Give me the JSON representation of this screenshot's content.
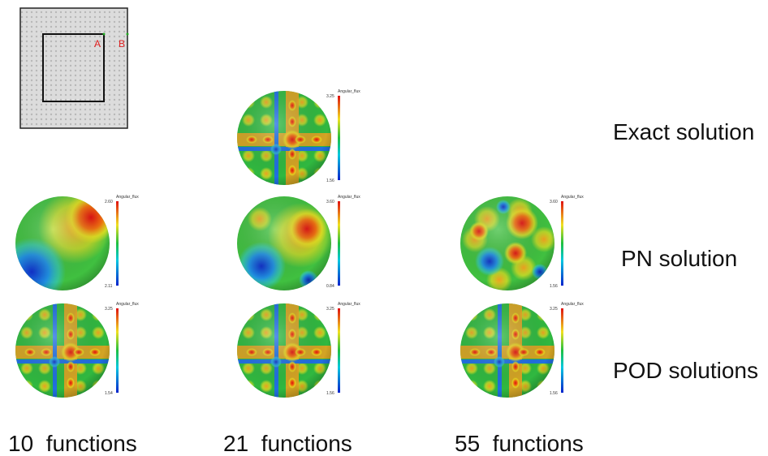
{
  "inset": {
    "point_a": "A",
    "point_b": "B"
  },
  "rows": [
    {
      "label": "Exact solution",
      "cells": [
        null,
        {
          "colorbar_title": "Angular_flux",
          "max": "3.25",
          "min": "1.56"
        },
        null
      ]
    },
    {
      "label": "PN solution",
      "cells": [
        {
          "colorbar_title": "Angular_flux",
          "max": "2.60",
          "min": "2.11"
        },
        {
          "colorbar_title": "Angular_flux",
          "max": "3.60",
          "min": "0.84"
        },
        {
          "colorbar_title": "Angular_flux",
          "max": "3.60",
          "min": "1.56"
        }
      ]
    },
    {
      "label": "POD solutions",
      "cells": [
        {
          "colorbar_title": "Angular_flux",
          "max": "3.25",
          "min": "1.54"
        },
        {
          "colorbar_title": "Angular_flux",
          "max": "3.25",
          "min": "1.56"
        },
        {
          "colorbar_title": "Angular_flux",
          "max": "3.25",
          "min": "1.56"
        }
      ]
    }
  ],
  "columns": [
    "10  functions",
    "21  functions",
    "55  functions"
  ]
}
